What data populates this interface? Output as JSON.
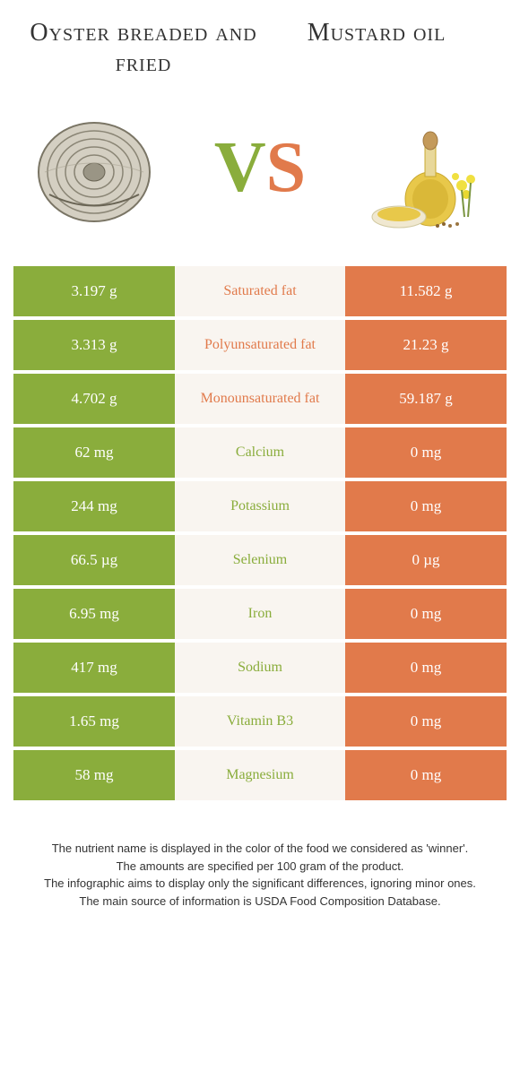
{
  "colors": {
    "left_bg": "#8aad3c",
    "right_bg": "#e17a4b",
    "mid_bg": "#f9f5f0",
    "left_text": "#8aad3c",
    "right_text": "#e17a4b",
    "title_text": "#333333",
    "footer_text": "#333333",
    "white": "#ffffff"
  },
  "header": {
    "left_title": "Oyster breaded and fried",
    "right_title": "Mustard oil",
    "vs_v": "V",
    "vs_s": "S"
  },
  "comparison": {
    "type": "table",
    "rows": [
      {
        "left": "3.197 g",
        "label": "Saturated fat",
        "right": "11.582 g",
        "winner": "right"
      },
      {
        "left": "3.313 g",
        "label": "Polyunsaturated fat",
        "right": "21.23 g",
        "winner": "right"
      },
      {
        "left": "4.702 g",
        "label": "Monounsaturated fat",
        "right": "59.187 g",
        "winner": "right"
      },
      {
        "left": "62 mg",
        "label": "Calcium",
        "right": "0 mg",
        "winner": "left"
      },
      {
        "left": "244 mg",
        "label": "Potassium",
        "right": "0 mg",
        "winner": "left"
      },
      {
        "left": "66.5 µg",
        "label": "Selenium",
        "right": "0 µg",
        "winner": "left"
      },
      {
        "left": "6.95 mg",
        "label": "Iron",
        "right": "0 mg",
        "winner": "left"
      },
      {
        "left": "417 mg",
        "label": "Sodium",
        "right": "0 mg",
        "winner": "left"
      },
      {
        "left": "1.65 mg",
        "label": "Vitamin B3",
        "right": "0 mg",
        "winner": "left"
      },
      {
        "left": "58 mg",
        "label": "Magnesium",
        "right": "0 mg",
        "winner": "left"
      }
    ]
  },
  "footer": {
    "line1": "The nutrient name is displayed in the color of the food we considered as 'winner'.",
    "line2": "The amounts are specified per 100 gram of the product.",
    "line3": "The infographic aims to display only the significant differences, ignoring minor ones.",
    "line4": "The main source of information is USDA Food Composition Database."
  }
}
